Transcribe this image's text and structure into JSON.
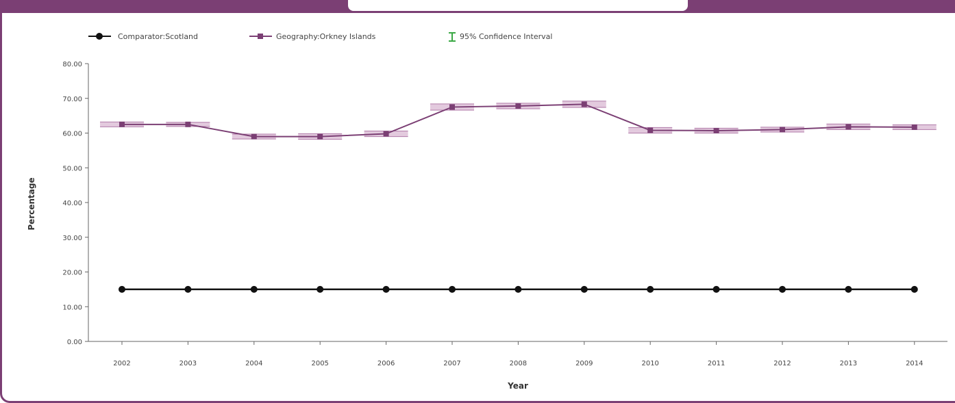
{
  "colors": {
    "frame": "#7b3f74",
    "geography_series": "#7b3f74",
    "comparator_series": "#111111",
    "ci_band": "#d9b8d3",
    "ci_legend": "#3aa844"
  },
  "header": {
    "partial_title": ""
  },
  "legend": {
    "items": [
      {
        "icon": "black-circle-line-marker",
        "label": "Comparator:Scotland"
      },
      {
        "icon": "purple-square-line-marker",
        "label": "Geography:Orkney Islands"
      },
      {
        "icon": "green-error-bar-icon",
        "label": "95% Confidence Interval"
      }
    ]
  },
  "chart_data": {
    "type": "line",
    "title": "",
    "xlabel": "Year",
    "ylabel": "Percentage",
    "ylim": [
      0,
      80
    ],
    "y_ticks": [
      "0.00",
      "10.00",
      "20.00",
      "30.00",
      "40.00",
      "50.00",
      "60.00",
      "70.00",
      "80.00"
    ],
    "categories": [
      "2002",
      "2003",
      "2004",
      "2005",
      "2006",
      "2007",
      "2008",
      "2009",
      "2010",
      "2011",
      "2012",
      "2013",
      "2014"
    ],
    "series": [
      {
        "name": "Comparator:Scotland",
        "values": [
          15,
          15,
          15,
          15,
          15,
          15,
          15,
          15,
          15,
          15,
          15,
          15,
          15
        ]
      },
      {
        "name": "Geography:Orkney Islands",
        "values": [
          62.5,
          62.5,
          59,
          59,
          59.8,
          67.5,
          67.8,
          68.3,
          60.8,
          60.7,
          61,
          61.8,
          61.7
        ],
        "ci_lower": [
          61.8,
          61.9,
          58.3,
          58.2,
          59.0,
          66.6,
          67.0,
          67.4,
          60.0,
          60.0,
          60.3,
          61.0,
          61.0
        ],
        "ci_upper": [
          63.2,
          63.1,
          59.7,
          59.8,
          60.6,
          68.4,
          68.6,
          69.2,
          61.6,
          61.4,
          61.7,
          62.6,
          62.4
        ]
      }
    ],
    "grid": false,
    "legend_position": "top-left"
  }
}
